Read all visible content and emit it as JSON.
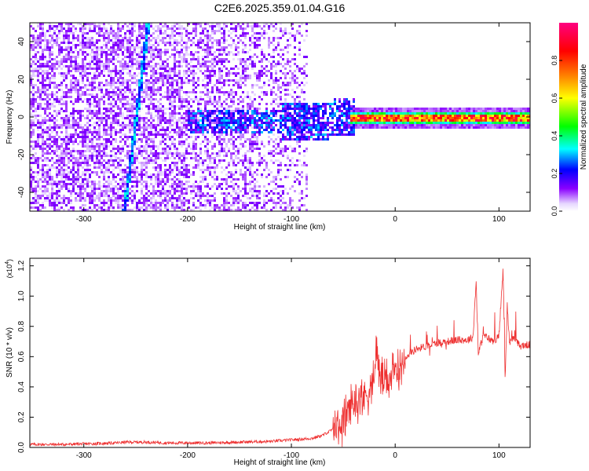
{
  "title": "C2E6.2025.359.01.04.G16",
  "chart_data": [
    {
      "type": "heatmap",
      "xlabel": "Height of straight line (km)",
      "ylabel": "Frequency (Hz)",
      "xlim": [
        -352,
        130
      ],
      "ylim": [
        -50,
        50
      ],
      "xticks": [
        -300,
        -200,
        -100,
        0,
        100
      ],
      "yticks": [
        -40,
        -20,
        0,
        20,
        40
      ],
      "xtick_labels": [
        "-300",
        "-200",
        "-100",
        "0",
        "100"
      ],
      "ytick_labels": [
        "-40",
        "-20",
        "0",
        "20",
        "40"
      ],
      "colorbar": {
        "label": "Normalized spectral amplitude",
        "range": [
          0,
          1
        ],
        "ticks": [
          0.0,
          0.2,
          0.4,
          0.6,
          0.8
        ],
        "tick_labels": [
          "0.0",
          "0.2",
          "0.4",
          "0.6",
          "0.8"
        ],
        "colors": [
          "#ffffff",
          "#8a00ff",
          "#0000ff",
          "#00ffff",
          "#00ff00",
          "#ffff00",
          "#ff8000",
          "#ff0000",
          "#ff0080"
        ]
      },
      "features": [
        {
          "name": "diagonal streak",
          "from": [
            -262,
            -50
          ],
          "to": [
            -239,
            50
          ],
          "amplitude": 0.25
        },
        {
          "name": "carrier line",
          "x_start": -45,
          "x_end": 130,
          "frequency": 0,
          "amplitude": 0.95
        }
      ]
    },
    {
      "type": "line",
      "xlabel": "Height of straight line (km)",
      "ylabel": "SNR (10 * v/v)",
      "y_multiplier": "(x10",
      "y_multiplier_exp": "4",
      "xlim": [
        -352,
        130
      ],
      "ylim": [
        0.0,
        1.25
      ],
      "xticks": [
        -300,
        -200,
        -100,
        0,
        100
      ],
      "yticks": [
        0.0,
        0.2,
        0.4,
        0.6,
        0.8,
        1.0,
        1.2
      ],
      "xtick_labels": [
        "-300",
        "-200",
        "-100",
        "0",
        "100"
      ],
      "ytick_labels": [
        "0.0",
        "0.2",
        "0.4",
        "0.6",
        "0.8",
        "1.0",
        "1.2"
      ],
      "color": "#ee3030",
      "series": [
        {
          "name": "SNR",
          "x": [
            -352,
            -320,
            -290,
            -268,
            -260,
            -240,
            -220,
            -200,
            -180,
            -150,
            -120,
            -100,
            -80,
            -70,
            -60,
            -50,
            -45,
            -40,
            -35,
            -30,
            -25,
            -20,
            -18,
            -15,
            -10,
            -5,
            0,
            5,
            10,
            20,
            30,
            40,
            50,
            60,
            70,
            75,
            78,
            80,
            85,
            90,
            95,
            100,
            104,
            106,
            108,
            110,
            115,
            120,
            130
          ],
          "y": [
            0.02,
            0.02,
            0.025,
            0.03,
            0.035,
            0.035,
            0.03,
            0.03,
            0.03,
            0.035,
            0.04,
            0.05,
            0.06,
            0.08,
            0.12,
            0.17,
            0.25,
            0.3,
            0.32,
            0.34,
            0.38,
            0.45,
            0.7,
            0.47,
            0.44,
            0.46,
            0.5,
            0.55,
            0.6,
            0.65,
            0.67,
            0.69,
            0.7,
            0.71,
            0.71,
            0.73,
            1.1,
            0.62,
            0.74,
            0.72,
            0.7,
            0.74,
            1.18,
            0.45,
            0.95,
            0.7,
            0.72,
            0.67,
            0.68
          ]
        }
      ]
    }
  ]
}
